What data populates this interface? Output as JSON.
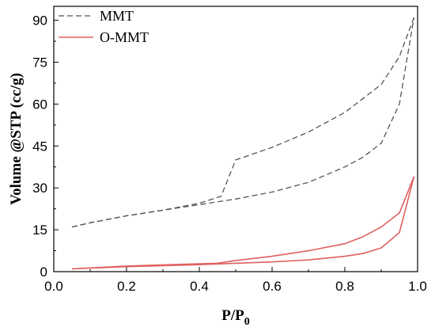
{
  "chart_data": {
    "type": "line",
    "title": "",
    "xlabel_main": "P/P",
    "xlabel_sub": "0",
    "ylabel": "Volume @STP (cc/g)",
    "xlim": [
      0.0,
      1.0
    ],
    "ylim": [
      0,
      95
    ],
    "xticks": [
      0.0,
      0.2,
      0.4,
      0.6,
      0.8,
      1.0
    ],
    "xtick_labels": [
      "0.0",
      "0.2",
      "0.4",
      "0.6",
      "0.8",
      "1.0"
    ],
    "yticks": [
      0,
      15,
      30,
      45,
      60,
      75,
      90
    ],
    "ytick_labels": [
      "0",
      "15",
      "30",
      "45",
      "60",
      "75",
      "90"
    ],
    "grid": false,
    "legend_position": "top-left",
    "series": [
      {
        "name": "MMT",
        "color": "#555555",
        "style": "dashed",
        "adsorption": {
          "x": [
            0.05,
            0.1,
            0.2,
            0.3,
            0.4,
            0.45,
            0.5,
            0.6,
            0.7,
            0.8,
            0.85,
            0.9,
            0.95,
            0.99
          ],
          "y": [
            16,
            17.5,
            20,
            22,
            24,
            25,
            26,
            28.5,
            32,
            37.5,
            41,
            46,
            60,
            91
          ]
        },
        "desorption": {
          "x": [
            0.99,
            0.95,
            0.9,
            0.8,
            0.7,
            0.6,
            0.5,
            0.46,
            0.4,
            0.3,
            0.2,
            0.1,
            0.05
          ],
          "y": [
            91,
            77,
            67,
            57,
            50,
            44.5,
            40,
            27,
            24.5,
            22,
            20,
            17.5,
            16
          ]
        }
      },
      {
        "name": "O-MMT",
        "color": "#e06060",
        "style": "solid",
        "adsorption": {
          "x": [
            0.05,
            0.2,
            0.4,
            0.5,
            0.6,
            0.7,
            0.8,
            0.85,
            0.9,
            0.95,
            0.99
          ],
          "y": [
            1,
            1.8,
            2.5,
            3,
            3.5,
            4.2,
            5.5,
            6.5,
            8.5,
            14,
            34
          ]
        },
        "desorption": {
          "x": [
            0.99,
            0.95,
            0.9,
            0.85,
            0.8,
            0.7,
            0.6,
            0.5,
            0.45,
            0.4,
            0.2,
            0.05
          ],
          "y": [
            34,
            21,
            16,
            12.5,
            10,
            7.5,
            5.5,
            4,
            3,
            2.8,
            2,
            1
          ]
        }
      }
    ]
  }
}
